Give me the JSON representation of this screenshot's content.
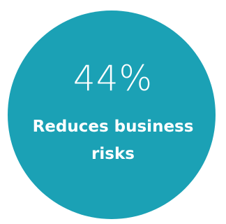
{
  "stat": {
    "value": "44%",
    "line1": "Reduces business",
    "line2": "risks"
  },
  "colors": {
    "circle": "#1ba1b5",
    "text": "#ffffff",
    "background": "#ffffff"
  }
}
